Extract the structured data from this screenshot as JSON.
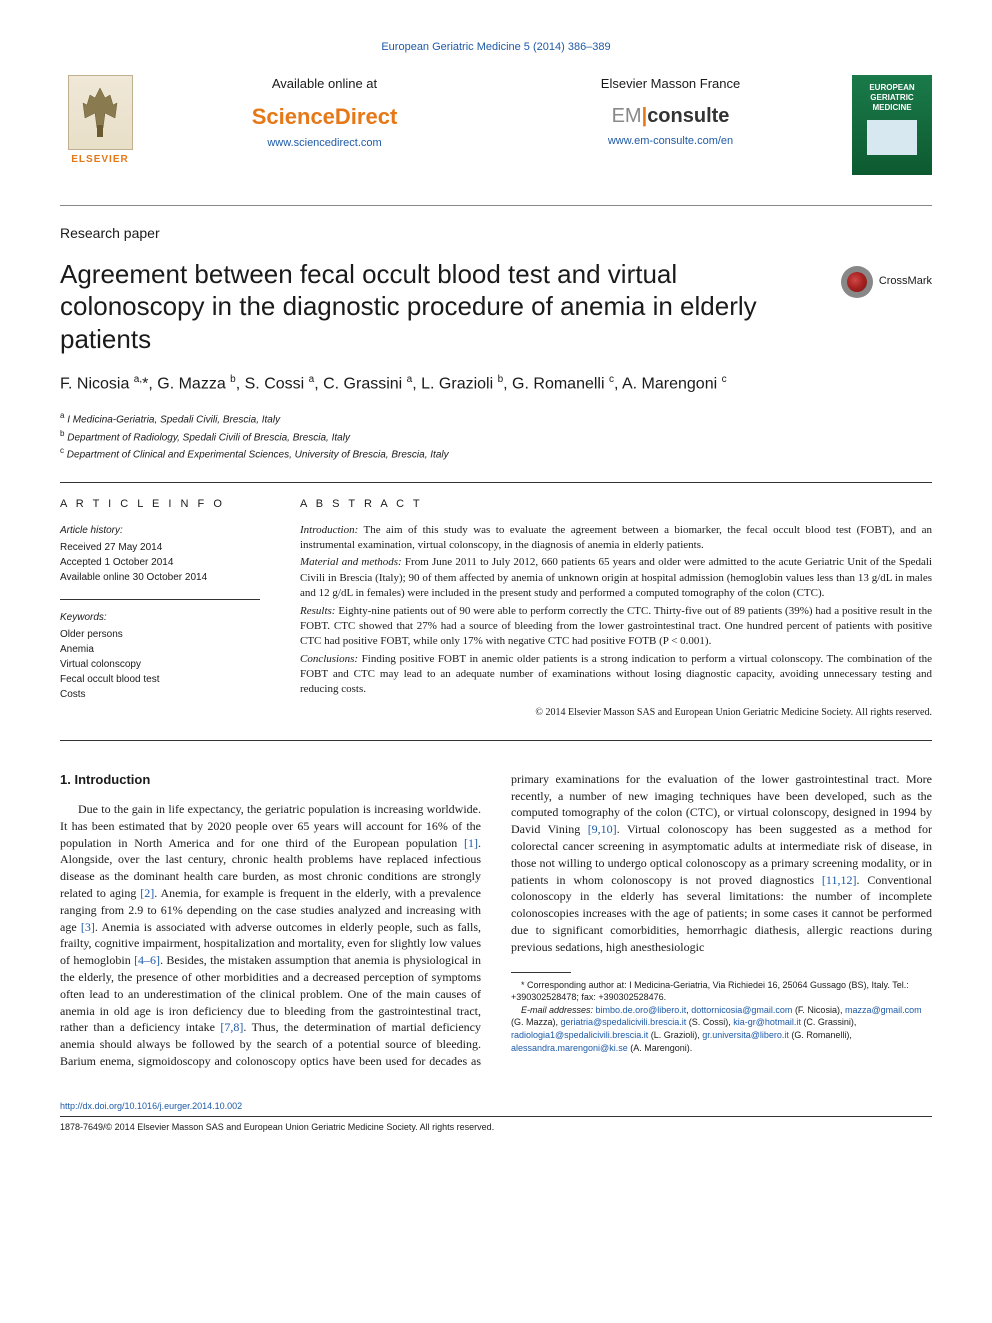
{
  "header": {
    "top_citation": "European Geriatric Medicine 5 (2014) 386–389",
    "available_at": "Available online at",
    "sciencedirect": "ScienceDirect",
    "sciencedirect_url": "www.sciencedirect.com",
    "elsevier_text": "ELSEVIER",
    "elsevier_masson": "Elsevier Masson France",
    "em": "EM",
    "consulte": "consulte",
    "em_url": "www.em-consulte.com/en",
    "journal_name": "EUROPEAN GERIATRIC MEDICINE"
  },
  "paper_type": "Research paper",
  "title": "Agreement between fecal occult blood test and virtual colonoscopy in the diagnostic procedure of anemia in elderly patients",
  "crossmark": "CrossMark",
  "authors_html": "F. Nicosia <sup>a,</sup>*, G. Mazza <sup>b</sup>, S. Cossi <sup>a</sup>, C. Grassini <sup>a</sup>, L. Grazioli <sup>b</sup>, G. Romanelli <sup>c</sup>, A. Marengoni <sup>c</sup>",
  "affiliations": {
    "a": "I Medicina-Geriatria, Spedali Civili, Brescia, Italy",
    "b": "Department of Radiology, Spedali Civili of Brescia, Brescia, Italy",
    "c": "Department of Clinical and Experimental Sciences, University of Brescia, Brescia, Italy"
  },
  "article_info": {
    "heading": "A R T I C L E   I N F O",
    "history_label": "Article history:",
    "received": "Received 27 May 2014",
    "accepted": "Accepted 1 October 2014",
    "online": "Available online 30 October 2014",
    "keywords_label": "Keywords:",
    "keywords": [
      "Older persons",
      "Anemia",
      "Virtual colonscopy",
      "Fecal occult blood test",
      "Costs"
    ]
  },
  "abstract": {
    "heading": "A B S T R A C T",
    "intro_label": "Introduction:",
    "intro": "The aim of this study was to evaluate the agreement between a biomarker, the fecal occult blood test (FOBT), and an instrumental examination, virtual colonscopy, in the diagnosis of anemia in elderly patients.",
    "methods_label": "Material and methods:",
    "methods": "From June 2011 to July 2012, 660 patients 65 years and older were admitted to the acute Geriatric Unit of the Spedali Civili in Brescia (Italy); 90 of them affected by anemia of unknown origin at hospital admission (hemoglobin values less than 13 g/dL in males and 12 g/dL in females) were included in the present study and performed a computed tomography of the colon (CTC).",
    "results_label": "Results:",
    "results": "Eighty-nine patients out of 90 were able to perform correctly the CTC. Thirty-five out of 89 patients (39%) had a positive result in the FOBT. CTC showed that 27% had a source of bleeding from the lower gastrointestinal tract. One hundred percent of patients with positive CTC had positive FOBT, while only 17% with negative CTC had positive FOTB (P < 0.001).",
    "conclusions_label": "Conclusions:",
    "conclusions": "Finding positive FOBT in anemic older patients is a strong indication to perform a virtual colonscopy. The combination of the FOBT and CTC may lead to an adequate number of examinations without losing diagnostic capacity, avoiding unnecessary testing and reducing costs.",
    "copyright": "© 2014 Elsevier Masson SAS and European Union Geriatric Medicine Society. All rights reserved."
  },
  "body": {
    "heading": "1. Introduction",
    "para1_a": "Due to the gain in life expectancy, the geriatric population is increasing worldwide. It has been estimated that by 2020 people over 65 years will account for 16% of the population in North America and for one third of the European population ",
    "ref1": "[1]",
    "para1_b": ". Alongside, over the last century, chronic health problems have replaced infectious disease as the dominant health care burden, as most chronic conditions are strongly related to aging ",
    "ref2": "[2]",
    "para1_c": ". Anemia, for example is frequent in the elderly, with a prevalence ranging from 2.9 to 61% depending on the case studies analyzed and increasing with age ",
    "ref3": "[3]",
    "para1_d": ". Anemia is associated with adverse outcomes in elderly people, such as falls, frailty, cognitive impairment, hospitalization and mortality, even for slightly low values of hemoglobin ",
    "ref46": "[4–6]",
    "para1_e": ". Besides, the mistaken assumption that anemia",
    "para2_a": "is physiological in the elderly, the presence of other morbidities and a decreased perception of symptoms often lead to an underestimation of the clinical problem. One of the main causes of anemia in old age is iron deficiency due to bleeding from the gastrointestinal tract, rather than a deficiency intake ",
    "ref78": "[7,8]",
    "para2_b": ". Thus, the determination of martial deficiency anemia should always be followed by the search of a potential source of bleeding. Barium enema, sigmoidoscopy and colonoscopy optics have been used for decades as primary examinations for the evaluation of the lower gastrointestinal tract. More recently, a number of new imaging techniques have been developed, such as the computed tomography of the colon (CTC), or virtual colonscopy, designed in 1994 by David Vining ",
    "ref910": "[9,10]",
    "para2_c": ". Virtual colonoscopy has been suggested as a method for colorectal cancer screening in asymptomatic adults at intermediate risk of disease, in those not willing to undergo optical colonoscopy as a primary screening modality, or in patients in whom colonoscopy is not proved diagnostics ",
    "ref1112": "[11,12]",
    "para2_d": ". Conventional colonoscopy in the elderly has several limitations: the number of incomplete colonoscopies increases with the age of patients; in some cases it cannot be performed due to significant comorbidities, hemorrhagic diathesis, allergic reactions during previous sedations, high anesthesiologic"
  },
  "footnotes": {
    "corresponding": "* Corresponding author at: I Medicina-Geriatria, Via Richiedei 16, 25064 Gussago (BS), Italy. Tel.: +390302528478; fax: +390302528476.",
    "email_label": "E-mail addresses:",
    "emails": [
      {
        "addr": "bimbo.de.oro@libero.it",
        "sep": ", "
      },
      {
        "addr": "dottornicosia@gmail.com",
        "name": " (F. Nicosia), "
      },
      {
        "addr": "mazza@gmail.com",
        "name": " (G. Mazza), "
      },
      {
        "addr": "geriatria@spedalicivili.brescia.it",
        "name": " (S. Cossi), "
      },
      {
        "addr": "kia-gr@hotmail.it",
        "name": " (C. Grassini), "
      },
      {
        "addr": "radiologia1@spedalicivili.brescia.it",
        "name": " (L. Grazioli), "
      },
      {
        "addr": "gr.universita@libero.it",
        "name": " (G. Romanelli), "
      },
      {
        "addr": "alessandra.marengoni@ki.se",
        "name": " (A. Marengoni)."
      }
    ]
  },
  "footer": {
    "doi": "http://dx.doi.org/10.1016/j.eurger.2014.10.002",
    "issn_copyright": "1878-7649/© 2014 Elsevier Masson SAS and European Union Geriatric Medicine Society. All rights reserved."
  },
  "colors": {
    "link": "#1e5aa8",
    "orange": "#e67817",
    "text": "#1a1a1a"
  }
}
